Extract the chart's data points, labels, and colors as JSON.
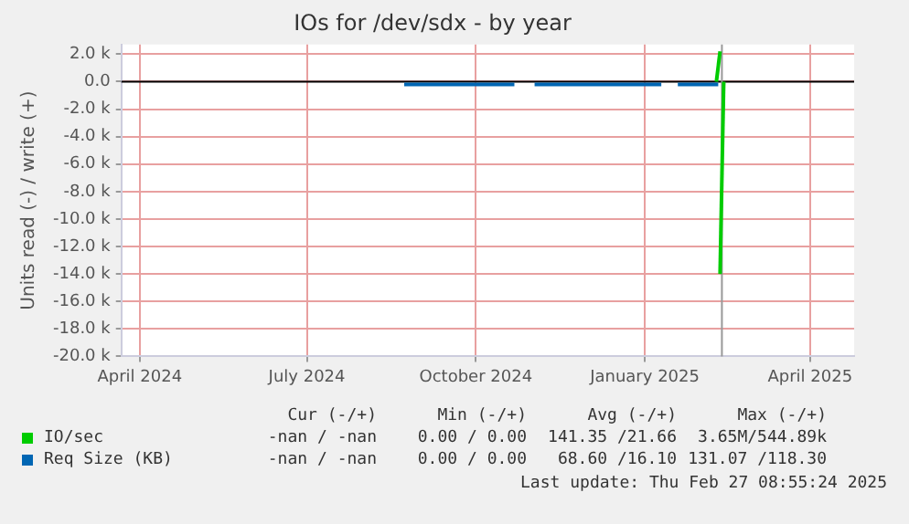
{
  "chart_data": {
    "type": "line",
    "title": "IOs for /dev/sdx - by year",
    "ylabel": "Units read (-) / write (+)",
    "series": [
      {
        "name": "IO/sec",
        "color": "#00cc00",
        "x": [
          "2025-02-09",
          "2025-02-11"
        ],
        "values": [
          0,
          2200
        ]
      },
      {
        "color": "#00cc00",
        "x": [
          "2025-02-11",
          "2025-02-13"
        ],
        "values": [
          -14000,
          0
        ]
      },
      {
        "name": "Req Size (KB)",
        "color": "#0066b3",
        "x": [
          "2024-08-23",
          "2024-10-22",
          "2024-10-23",
          "2024-11-02",
          "2025-01-10",
          "2025-01-11",
          "2025-01-19",
          "2025-02-10"
        ],
        "values": [
          -200,
          -200,
          null,
          -200,
          -200,
          null,
          -200,
          -200
        ]
      }
    ],
    "xlim": [
      "2024-03-22",
      "2025-04-25"
    ],
    "xticks": [
      {
        "value": "2024-04-01",
        "label": "April 2024"
      },
      {
        "value": "2024-07-01",
        "label": "July 2024"
      },
      {
        "value": "2024-10-01",
        "label": "October 2024"
      },
      {
        "value": "2025-01-01",
        "label": "January 2025"
      },
      {
        "value": "2025-04-01",
        "label": "April 2025"
      }
    ],
    "ylim": [
      -20000,
      2700
    ],
    "yticks": [
      {
        "value": 2000,
        "label": "2.0 k"
      },
      {
        "value": 0,
        "label": "0.0"
      },
      {
        "value": -2000,
        "label": "-2.0 k"
      },
      {
        "value": -4000,
        "label": "-4.0 k"
      },
      {
        "value": -6000,
        "label": "-6.0 k"
      },
      {
        "value": -8000,
        "label": "-8.0 k"
      },
      {
        "value": -10000,
        "label": "-10.0 k"
      },
      {
        "value": -12000,
        "label": "-12.0 k"
      },
      {
        "value": -14000,
        "label": "-14.0 k"
      },
      {
        "value": -16000,
        "label": "-16.0 k"
      },
      {
        "value": -18000,
        "label": "-18.0 k"
      },
      {
        "value": -20000,
        "label": "-20.0 k"
      }
    ],
    "ref_lines": [
      {
        "axis": "y",
        "value": 0,
        "color": "#000000"
      },
      {
        "axis": "x",
        "value": "2025-02-12",
        "color": "#999999"
      }
    ],
    "grid": true,
    "legend": "bottom",
    "marker": "none",
    "line_style": "solid",
    "annotations": [
      "Cur (-/+)",
      "Min (-/+)",
      "Avg (-/+)",
      "Max (-/+)",
      "-nan / -nan",
      "0.00 / 0.00",
      "141.35 /21.66",
      "3.65M/544.89k",
      "-nan / -nan",
      "0.00 / 0.00",
      "68.60 /16.10",
      "131.07 /118.30",
      "Last update: Thu Feb 27 08:55:24 2025"
    ]
  }
}
